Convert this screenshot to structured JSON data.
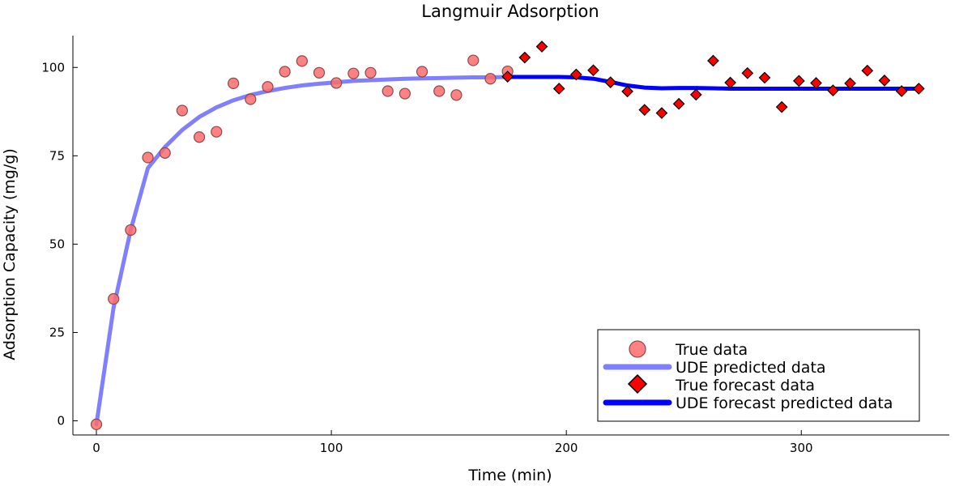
{
  "chart_data": {
    "type": "scatter+line",
    "title": "Langmuir Adsorption",
    "xlabel": "Time (min)",
    "ylabel": "Adsorption Capacity (mg/g)",
    "xlim": [
      -10,
      363
    ],
    "ylim": [
      -4,
      109
    ],
    "xticks": [
      0,
      100,
      200,
      300
    ],
    "yticks": [
      0,
      25,
      50,
      75,
      100
    ],
    "grid": false,
    "legend_position": "bottom-right",
    "colors": {
      "true_data": "#ff6b6b",
      "true_data_edge": "#8a4a4a",
      "ude_predicted": "#8080ff",
      "true_forecast": "#ff0000",
      "ude_forecast": "#0000ff"
    },
    "series": [
      {
        "name": "True data",
        "kind": "scatter-circle",
        "x": [
          0,
          7.3,
          14.6,
          21.9,
          29.2,
          36.5,
          43.8,
          51.1,
          58.3,
          65.6,
          72.9,
          80.2,
          87.5,
          94.8,
          102.1,
          109.4,
          116.7,
          124,
          131.3,
          138.6,
          145.9,
          153.2,
          160.4,
          167.7,
          175
        ],
        "y": [
          -1,
          34.5,
          54,
          74.5,
          75.8,
          87.8,
          80.3,
          81.8,
          95.5,
          91,
          94.5,
          98.8,
          101.8,
          98.5,
          95.6,
          98.3,
          98.5,
          93.3,
          92.6,
          98.8,
          93.3,
          92.2,
          102,
          96.8,
          98.9
        ]
      },
      {
        "name": "UDE predicted data",
        "kind": "line",
        "x": [
          0,
          7.3,
          14.6,
          21.9,
          29.2,
          36.5,
          43.8,
          51.1,
          58.3,
          65.6,
          72.9,
          80.2,
          87.5,
          94.8,
          102.1,
          109.4,
          116.7,
          124,
          131.3,
          138.6,
          145.9,
          153.2,
          160.4,
          167.7,
          175
        ],
        "y": [
          -1,
          32,
          54,
          71.5,
          77.5,
          82.3,
          86,
          88.7,
          90.7,
          92.2,
          93.3,
          94.2,
          94.9,
          95.4,
          95.8,
          96.2,
          96.4,
          96.6,
          96.8,
          96.9,
          97,
          97.1,
          97.2,
          97.2,
          97.3
        ]
      },
      {
        "name": "True forecast data",
        "kind": "scatter-diamond",
        "x": [
          175,
          182.3,
          189.6,
          196.9,
          204.2,
          211.5,
          218.8,
          226,
          233.3,
          240.6,
          247.9,
          255.2,
          262.5,
          269.8,
          277.1,
          284.4,
          291.7,
          299,
          306.3,
          313.5,
          320.8,
          328.1,
          335.4,
          342.7,
          350
        ],
        "y": [
          97.4,
          102.8,
          105.9,
          94,
          98,
          99.2,
          95.8,
          93.2,
          88,
          87.1,
          89.7,
          92.3,
          101.9,
          95.7,
          98.4,
          97.1,
          88.8,
          96.2,
          95.6,
          93.5,
          95.5,
          99.1,
          96.3,
          93.3,
          94
        ]
      },
      {
        "name": "UDE forecast predicted data",
        "kind": "line",
        "x": [
          175,
          182.3,
          189.6,
          196.9,
          204.2,
          211.5,
          218.8,
          226,
          233.3,
          240.6,
          247.9,
          255.2,
          262.5,
          269.8,
          277.1,
          284.4,
          291.7,
          299,
          306.3,
          313.5,
          320.8,
          328.1,
          335.4,
          342.7,
          350
        ],
        "y": [
          97.3,
          97.3,
          97.3,
          97.3,
          97.2,
          96.8,
          95.9,
          94.9,
          94.3,
          94.1,
          94.2,
          94.2,
          94.1,
          94,
          94,
          94,
          94,
          94,
          94,
          94,
          94,
          94,
          94,
          94,
          94
        ]
      }
    ]
  }
}
